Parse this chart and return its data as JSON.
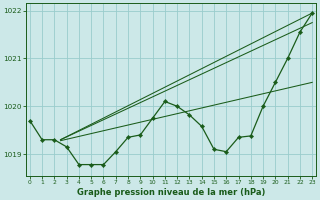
{
  "background_color": "#cce8e8",
  "grid_color": "#99cccc",
  "line_color": "#1a5c1a",
  "title": "Graphe pression niveau de la mer (hPa)",
  "xlim": [
    -0.3,
    23.3
  ],
  "ylim": [
    1018.55,
    1022.15
  ],
  "yticks": [
    1019,
    1020,
    1021,
    1022
  ],
  "xticks": [
    0,
    1,
    2,
    3,
    4,
    5,
    6,
    7,
    8,
    9,
    10,
    11,
    12,
    13,
    14,
    15,
    16,
    17,
    18,
    19,
    20,
    21,
    22,
    23
  ],
  "series_main": {
    "x": [
      0,
      1,
      2,
      3,
      4,
      5,
      6,
      7,
      8,
      9,
      10,
      11,
      12,
      13,
      14,
      15,
      16,
      17,
      18,
      19,
      20,
      21,
      22,
      23
    ],
    "y": [
      1019.7,
      1019.3,
      1019.3,
      1019.15,
      1018.78,
      1018.78,
      1018.78,
      1019.05,
      1019.35,
      1019.4,
      1019.75,
      1020.1,
      1020.0,
      1019.82,
      1019.58,
      1019.1,
      1019.05,
      1019.35,
      1019.38,
      1020.0,
      1020.5,
      1021.0,
      1021.55,
      1021.95
    ],
    "marker": "D",
    "markersize": 2.2,
    "linewidth": 0.9
  },
  "trend_lines": [
    {
      "x0": 2.5,
      "y0": 1019.3,
      "x1": 23,
      "y1": 1021.95
    },
    {
      "x0": 2.5,
      "y0": 1019.3,
      "x1": 23,
      "y1": 1021.75
    },
    {
      "x0": 2.5,
      "y0": 1019.28,
      "x1": 23,
      "y1": 1020.5
    }
  ],
  "trend_linewidth": 0.75
}
